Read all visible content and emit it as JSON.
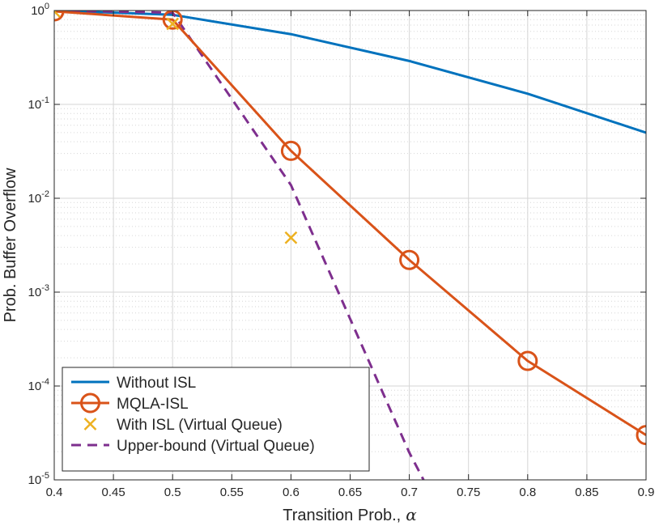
{
  "chart_data": {
    "type": "line",
    "title": "",
    "xlabel": "Transition Prob.,",
    "xlabel_symbol": "α",
    "ylabel": "Prob. Buffer Overflow",
    "xlim": [
      0.4,
      0.9
    ],
    "ylim": [
      1e-05,
      1
    ],
    "yscale": "log",
    "grid": true,
    "minor_grid": true,
    "legend_location": "bottom-left",
    "x_ticks": [
      0.4,
      0.45,
      0.5,
      0.55,
      0.6,
      0.65,
      0.7,
      0.75,
      0.8,
      0.85,
      0.9
    ],
    "x_tick_labels": [
      "0.4",
      "0.45",
      "0.5",
      "0.55",
      "0.6",
      "0.65",
      "0.7",
      "0.75",
      "0.8",
      "0.85",
      "0.9"
    ],
    "y_ticks": [
      {
        "value": 1e-05,
        "mantissa": "10",
        "exponent": "-5"
      },
      {
        "value": 0.0001,
        "mantissa": "10",
        "exponent": "-4"
      },
      {
        "value": 0.001,
        "mantissa": "10",
        "exponent": "-3"
      },
      {
        "value": 0.01,
        "mantissa": "10",
        "exponent": "-2"
      },
      {
        "value": 0.1,
        "mantissa": "10",
        "exponent": "-1"
      },
      {
        "value": 1,
        "mantissa": "10",
        "exponent": "0"
      }
    ],
    "series": [
      {
        "name": "Without ISL",
        "color": "#0072BD",
        "style": "solid",
        "marker": "none",
        "x": [
          0.4,
          0.5,
          0.6,
          0.7,
          0.8,
          0.9
        ],
        "y": [
          1.0,
          0.9,
          0.56,
          0.29,
          0.13,
          0.05
        ]
      },
      {
        "name": "MQLA-ISL",
        "color": "#D95319",
        "style": "solid",
        "marker": "circle",
        "x": [
          0.4,
          0.5,
          0.6,
          0.7,
          0.8,
          0.9
        ],
        "y": [
          0.98,
          0.8,
          0.032,
          0.0022,
          0.000185,
          3e-05
        ]
      },
      {
        "name": "With ISL (Virtual Queue)",
        "color": "#EDB120",
        "style": "none",
        "marker": "x",
        "x": [
          0.4,
          0.5,
          0.6
        ],
        "y": [
          0.98,
          0.72,
          0.0038
        ]
      },
      {
        "name": "Upper-bound (Virtual Queue)",
        "color": "#7E2F8E",
        "style": "dashed",
        "marker": "none",
        "x": [
          0.4,
          0.5,
          0.6,
          0.7,
          0.712
        ],
        "y": [
          1.0,
          0.95,
          0.0138,
          1.95e-05,
          1e-05
        ]
      }
    ]
  }
}
